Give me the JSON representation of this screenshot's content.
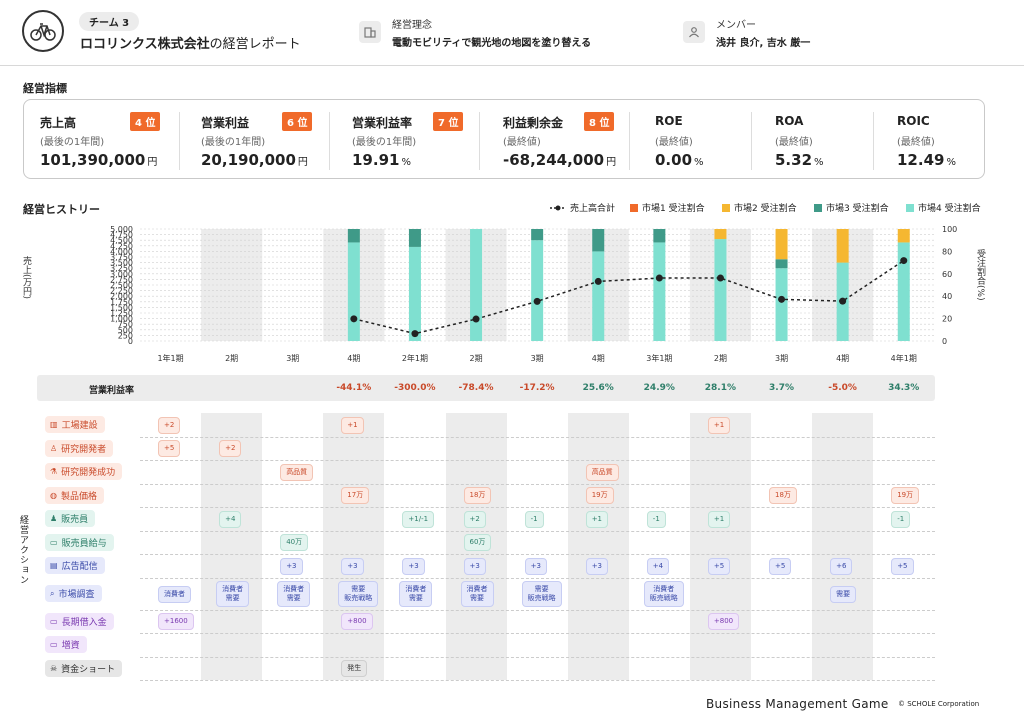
{
  "header": {
    "team": "チーム 3",
    "company_name": "ロコリンクス株式会社",
    "company_suffix": "の経営レポート",
    "philosophy_label": "経営理念",
    "philosophy": "電動モビリティで観光地の地図を塗り替える",
    "members_label": "メンバー",
    "members": "浅井 良介, 吉水 厳一",
    "building_icon": "building-icon",
    "person_icon": "person-icon"
  },
  "metrics_title": "経営指標",
  "metrics": [
    {
      "name": "売上高",
      "sub": "(最後の1年間)",
      "value": "101,390,000",
      "unit": "円",
      "rank": "4 位"
    },
    {
      "name": "営業利益",
      "sub": "(最後の1年間)",
      "value": "20,190,000",
      "unit": "円",
      "rank": "6 位"
    },
    {
      "name": "営業利益率",
      "sub": "(最後の1年間)",
      "value": "19.91",
      "unit": "%",
      "rank": "7 位"
    },
    {
      "name": "利益剰余金",
      "sub": "(最終値)",
      "value": "-68,244,000",
      "unit": "円",
      "rank": "8 位"
    },
    {
      "name": "ROE",
      "sub": "(最終値)",
      "value": "0.00",
      "unit": "%",
      "rank": ""
    },
    {
      "name": "ROA",
      "sub": "(最終値)",
      "value": "5.32",
      "unit": "%",
      "rank": ""
    },
    {
      "name": "ROIC",
      "sub": "(最終値)",
      "value": "12.49",
      "unit": "%",
      "rank": ""
    }
  ],
  "history_title": "経営ヒストリー",
  "legend": {
    "line": "売上高合計",
    "m1": "市場1 受注割合",
    "m2": "市場2 受注割合",
    "m3": "市場3 受注割合",
    "m4": "市場4 受注割合"
  },
  "colors": {
    "m1": "#f06a2a",
    "m2": "#f5b731",
    "m3": "#3f9a88",
    "m4": "#7fe0d0",
    "rank": "#f06a2a",
    "negative": "#c94a2a",
    "positive": "#2f7f6a"
  },
  "chart_data": {
    "type": "bar",
    "ylabel_left": "売上(万円)",
    "ylabel_right": "受注割合(%)",
    "left_ticks": [
      "0",
      "250",
      "500",
      "750",
      "1,000",
      "1,250",
      "1,500",
      "1,750",
      "2,000",
      "2,250",
      "2,500",
      "2,750",
      "3,000",
      "3,250",
      "3,500",
      "3,750",
      "4,000",
      "4,250",
      "4,500",
      "4,750",
      "5,000"
    ],
    "right_ticks": [
      "0",
      "20",
      "40",
      "60",
      "80",
      "100"
    ],
    "ylim_left": [
      0,
      5000
    ],
    "ylim_right": [
      0,
      100
    ],
    "categories": [
      "1年1期",
      "2期",
      "3期",
      "4期",
      "2年1期",
      "2期",
      "3期",
      "4期",
      "3年1期",
      "2期",
      "3期",
      "4期",
      "4年1期"
    ],
    "sales_line": [
      null,
      null,
      null,
      990,
      330,
      980,
      1770,
      2660,
      2810,
      2810,
      1860,
      1780,
      3590
    ],
    "series": [
      {
        "name": "市場1 受注割合",
        "values": [
          0,
          0,
          0,
          0,
          0,
          0,
          0,
          0,
          0,
          0,
          0,
          0,
          0
        ]
      },
      {
        "name": "市場2 受注割合",
        "values": [
          0,
          0,
          0,
          0,
          0,
          0,
          0,
          0,
          0,
          9,
          27,
          30,
          12
        ]
      },
      {
        "name": "市場3 受注割合",
        "values": [
          0,
          0,
          0,
          12,
          16,
          0,
          10,
          20,
          12,
          0,
          8,
          0,
          0
        ]
      },
      {
        "name": "市場4 受注割合",
        "values": [
          0,
          0,
          0,
          88,
          84,
          100,
          90,
          80,
          88,
          91,
          65,
          70,
          88
        ]
      }
    ]
  },
  "operating_margin_label": "営業利益率",
  "operating_margin": [
    "",
    "",
    "",
    "-44.1%",
    "-300.0%",
    "-78.4%",
    "-17.2%",
    "25.6%",
    "24.9%",
    "28.1%",
    "3.7%",
    "-5.0%",
    "34.3%"
  ],
  "actions_label": "経営アクション",
  "actions": [
    {
      "label": "工場建設",
      "icon": "factory-icon"
    },
    {
      "label": "研究開発者",
      "icon": "scientist-icon"
    },
    {
      "label": "研究開発成功",
      "icon": "flask-icon"
    },
    {
      "label": "製品価格",
      "icon": "money-bag-icon"
    },
    {
      "label": "販売員",
      "icon": "salesperson-icon"
    },
    {
      "label": "販売員給与",
      "icon": "banknote-icon"
    },
    {
      "label": "広告配信",
      "icon": "billboard-icon"
    },
    {
      "label": "市場調査",
      "icon": "magnifier-icon"
    },
    {
      "label": "長期借入金",
      "icon": "loan-icon"
    },
    {
      "label": "増資",
      "icon": "capital-icon"
    },
    {
      "label": "資金ショート",
      "icon": "skull-icon"
    }
  ],
  "action_tags": [
    {
      "row": 0,
      "col": 0,
      "text": "+2"
    },
    {
      "row": 0,
      "col": 3,
      "text": "+1"
    },
    {
      "row": 0,
      "col": 9,
      "text": "+1"
    },
    {
      "row": 1,
      "col": 0,
      "text": "+5"
    },
    {
      "row": 1,
      "col": 1,
      "text": "+2"
    },
    {
      "row": 2,
      "col": 2,
      "text": "高品質"
    },
    {
      "row": 2,
      "col": 7,
      "text": "高品質"
    },
    {
      "row": 3,
      "col": 3,
      "text": "17万"
    },
    {
      "row": 3,
      "col": 5,
      "text": "18万"
    },
    {
      "row": 3,
      "col": 7,
      "text": "19万"
    },
    {
      "row": 3,
      "col": 10,
      "text": "18万"
    },
    {
      "row": 3,
      "col": 12,
      "text": "19万"
    },
    {
      "row": 4,
      "col": 1,
      "text": "+4"
    },
    {
      "row": 4,
      "col": 4,
      "text": "+1/-1"
    },
    {
      "row": 4,
      "col": 5,
      "text": "+2"
    },
    {
      "row": 4,
      "col": 6,
      "text": "-1"
    },
    {
      "row": 4,
      "col": 7,
      "text": "+1"
    },
    {
      "row": 4,
      "col": 8,
      "text": "-1"
    },
    {
      "row": 4,
      "col": 9,
      "text": "+1"
    },
    {
      "row": 4,
      "col": 12,
      "text": "-1"
    },
    {
      "row": 5,
      "col": 2,
      "text": "40万"
    },
    {
      "row": 5,
      "col": 5,
      "text": "60万"
    },
    {
      "row": 6,
      "col": 2,
      "text": "+3"
    },
    {
      "row": 6,
      "col": 3,
      "text": "+3"
    },
    {
      "row": 6,
      "col": 4,
      "text": "+3"
    },
    {
      "row": 6,
      "col": 5,
      "text": "+3"
    },
    {
      "row": 6,
      "col": 6,
      "text": "+3"
    },
    {
      "row": 6,
      "col": 7,
      "text": "+3"
    },
    {
      "row": 6,
      "col": 8,
      "text": "+4"
    },
    {
      "row": 6,
      "col": 9,
      "text": "+5"
    },
    {
      "row": 6,
      "col": 10,
      "text": "+5"
    },
    {
      "row": 6,
      "col": 11,
      "text": "+6"
    },
    {
      "row": 6,
      "col": 12,
      "text": "+5"
    },
    {
      "row": 7,
      "col": 0,
      "text": "消費者"
    },
    {
      "row": 7,
      "col": 1,
      "text": "消費者\n需要"
    },
    {
      "row": 7,
      "col": 2,
      "text": "消費者\n需要"
    },
    {
      "row": 7,
      "col": 3,
      "text": "需要\n販売戦略"
    },
    {
      "row": 7,
      "col": 4,
      "text": "消費者\n需要"
    },
    {
      "row": 7,
      "col": 5,
      "text": "消費者\n需要"
    },
    {
      "row": 7,
      "col": 6,
      "text": "需要\n販売戦略"
    },
    {
      "row": 7,
      "col": 8,
      "text": "消費者\n販売戦略"
    },
    {
      "row": 7,
      "col": 11,
      "text": "需要"
    },
    {
      "row": 8,
      "col": 0,
      "text": "+1600"
    },
    {
      "row": 8,
      "col": 3,
      "text": "+800"
    },
    {
      "row": 8,
      "col": 9,
      "text": "+800"
    },
    {
      "row": 10,
      "col": 3,
      "text": "発生"
    }
  ],
  "footer": {
    "title": "Business Management Game",
    "copyright": "© SCHOLE Corporation"
  }
}
